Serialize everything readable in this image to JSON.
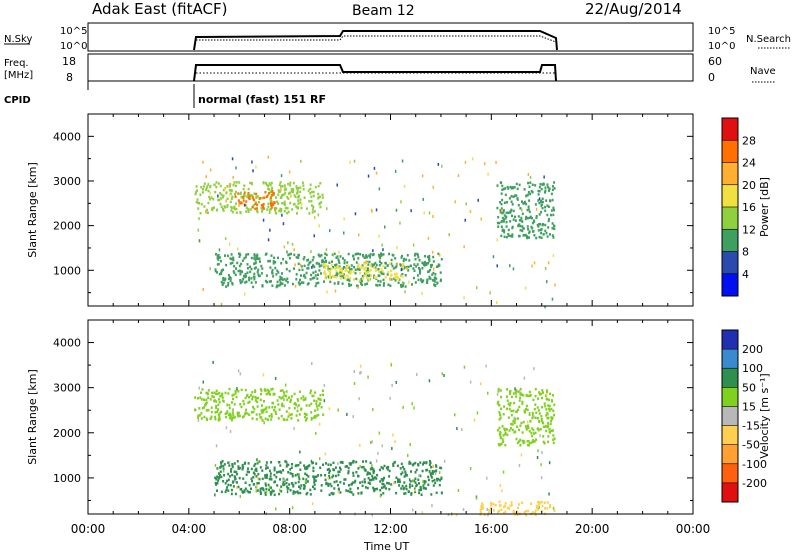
{
  "header": {
    "station": "Adak East (fitACF)",
    "beam": "Beam 12",
    "date": "22/Aug/2014"
  },
  "panels": {
    "nsky": {
      "label": "N.Sky",
      "ticks_left": [
        "10^5",
        "10^0"
      ],
      "ticks_right": [
        "10^5",
        "10^0"
      ],
      "legend": "N.Search"
    },
    "freq": {
      "label_line1": "Freq.",
      "label_line2": "[MHz]",
      "ticks_left": [
        "18",
        "8"
      ],
      "ticks_right": [
        "60",
        "0"
      ],
      "legend": "Nave"
    },
    "cpid": {
      "label": "CPID",
      "text": "normal (fast) 151 RF"
    }
  },
  "chart_data": [
    {
      "type": "heatmap",
      "title": "",
      "xlabel": "",
      "ylabel": "Slant Range [km]",
      "x_ticks": [
        "00:00",
        "04:00",
        "08:00",
        "12:00",
        "16:00",
        "20:00",
        "00:00"
      ],
      "xlim_hours": [
        0,
        24
      ],
      "y_ticks": [
        1000,
        2000,
        3000,
        4000
      ],
      "ylim": [
        200,
        4500
      ],
      "colorbar_label": "Power [dB]",
      "colorbar_ticks": [
        "28",
        "24",
        "20",
        "16",
        "12",
        "8",
        "4"
      ],
      "colorbar_colors": [
        "#e01010",
        "#ff7000",
        "#ffb030",
        "#f0e040",
        "#90d040",
        "#3f9f5f",
        "#2b4ab0",
        "#0010f0"
      ],
      "regions": [
        {
          "start_hour": 4.2,
          "end_hour": 9.3,
          "range_min_km": 2300,
          "range_max_km": 3000,
          "value": 16
        },
        {
          "start_hour": 5.8,
          "end_hour": 7.4,
          "range_min_km": 2400,
          "range_max_km": 2800,
          "value": 26
        },
        {
          "start_hour": 5.0,
          "end_hour": 14.0,
          "range_min_km": 650,
          "range_max_km": 1400,
          "value": 10
        },
        {
          "start_hour": 9.3,
          "end_hour": 12.5,
          "range_min_km": 800,
          "range_max_km": 1200,
          "value": 20
        },
        {
          "start_hour": 16.2,
          "end_hour": 18.5,
          "range_min_km": 1750,
          "range_max_km": 3000,
          "value": 10
        }
      ]
    },
    {
      "type": "heatmap",
      "title": "",
      "xlabel": "Time UT",
      "ylabel": "Slant Range [km]",
      "x_ticks": [
        "00:00",
        "04:00",
        "08:00",
        "12:00",
        "16:00",
        "20:00",
        "00:00"
      ],
      "xlim_hours": [
        0,
        24
      ],
      "y_ticks": [
        1000,
        2000,
        3000,
        4000
      ],
      "ylim": [
        200,
        4500
      ],
      "colorbar_label": "Velocity [m s⁻¹]",
      "colorbar_ticks": [
        "200",
        "100",
        "50",
        "15",
        "-15",
        "-50",
        "-100",
        "-200"
      ],
      "colorbar_colors": [
        "#2030b0",
        "#3a8ad0",
        "#2f8f4f",
        "#80d020",
        "#b8b8b8",
        "#ffd050",
        "#ffa030",
        "#ff6010",
        "#e01010"
      ],
      "regions": [
        {
          "start_hour": 4.2,
          "end_hour": 9.3,
          "range_min_km": 2300,
          "range_max_km": 3000,
          "value": 0
        },
        {
          "start_hour": 5.0,
          "end_hour": 14.0,
          "range_min_km": 650,
          "range_max_km": 1400,
          "value": 30
        },
        {
          "start_hour": 16.2,
          "end_hour": 18.5,
          "range_min_km": 1750,
          "range_max_km": 3000,
          "value": 0
        },
        {
          "start_hour": 15.5,
          "end_hour": 18.5,
          "range_min_km": 200,
          "range_max_km": 500,
          "value": -60
        }
      ]
    }
  ]
}
